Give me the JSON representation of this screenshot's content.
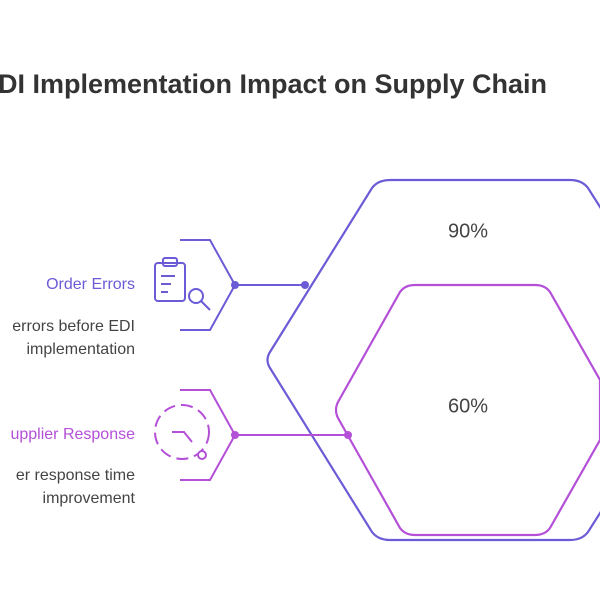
{
  "header": {
    "title": "DI Implementation Impact on Supply Chain"
  },
  "hexagons": [
    {
      "label": "90%"
    },
    {
      "label": "60%"
    }
  ],
  "items": [
    {
      "title": "Order Errors",
      "description": [
        "errors before EDI",
        "implementation"
      ]
    },
    {
      "title": "upplier Response",
      "description": [
        "er response time",
        "improvement"
      ]
    }
  ]
}
